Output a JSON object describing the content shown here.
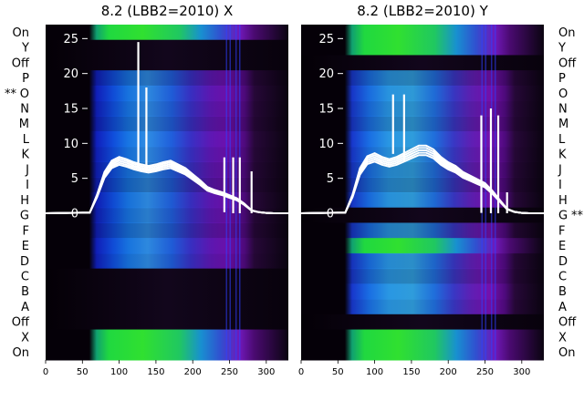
{
  "chart_data": [
    {
      "type": "heatmap",
      "title": "8.2 (LBB2=2010) X",
      "marker_row": "O",
      "xlim": [
        0,
        330
      ],
      "ylim": [
        -0.5,
        21.5
      ],
      "overlay_ylim": [
        -21,
        27
      ],
      "xticks": [
        0,
        50,
        100,
        150,
        200,
        250,
        300
      ],
      "overlay_yticks": [
        0,
        5,
        10,
        15,
        20,
        25
      ],
      "rows": [
        "On",
        "Y",
        "Off",
        "P",
        "O",
        "N",
        "M",
        "L",
        "K",
        "J",
        "I",
        "H",
        "G",
        "F",
        "E",
        "D",
        "C",
        "B",
        "A",
        "Off",
        "X",
        "On"
      ],
      "row_types": [
        "on",
        "off",
        "off",
        "data",
        "data",
        "data",
        "data",
        "data",
        "data",
        "data",
        "data",
        "data",
        "data",
        "data",
        "data",
        "data",
        "off",
        "off",
        "off",
        "off",
        "on",
        "on"
      ],
      "line_shape": {
        "x": [
          0,
          60,
          70,
          80,
          90,
          100,
          110,
          120,
          130,
          140,
          150,
          160,
          170,
          180,
          190,
          200,
          210,
          220,
          230,
          240,
          250,
          260,
          270,
          280,
          290,
          300,
          310,
          320,
          330
        ],
        "y": [
          0,
          0.1,
          2.5,
          5.5,
          7,
          7.5,
          7.2,
          6.8,
          6.5,
          6.3,
          6.5,
          6.8,
          7,
          6.5,
          6,
          5.2,
          4.4,
          3.5,
          3.1,
          2.8,
          2.4,
          2.0,
          1.3,
          0.4,
          0.15,
          0.05,
          0,
          0,
          0
        ]
      },
      "spikes": [
        {
          "x": 126,
          "y": 24.5
        },
        {
          "x": 137,
          "y": 18
        },
        {
          "x": 243,
          "y": 8
        },
        {
          "x": 255,
          "y": 8
        },
        {
          "x": 264,
          "y": 8
        },
        {
          "x": 280,
          "y": 6
        }
      ]
    },
    {
      "type": "heatmap",
      "title": "8.2 (LBB2=2010) Y",
      "marker_row": "G",
      "xlim": [
        0,
        330
      ],
      "ylim": [
        -0.5,
        21.5
      ],
      "overlay_ylim": [
        -21,
        27
      ],
      "xticks": [
        0,
        50,
        100,
        150,
        200,
        250,
        300
      ],
      "overlay_yticks": [
        0,
        5,
        10,
        15,
        20,
        25
      ],
      "rows": [
        "On",
        "Y",
        "Off",
        "P",
        "O",
        "N",
        "M",
        "L",
        "K",
        "J",
        "I",
        "H",
        "G",
        "F",
        "E",
        "D",
        "C",
        "B",
        "A",
        "Off",
        "X",
        "On"
      ],
      "row_types": [
        "on",
        "on",
        "off",
        "data",
        "data",
        "data",
        "data",
        "data",
        "data",
        "data",
        "data",
        "data",
        "off",
        "data",
        "on",
        "data",
        "data",
        "data",
        "data",
        "off",
        "on",
        "on"
      ],
      "line_shape": {
        "x": [
          0,
          60,
          70,
          80,
          90,
          100,
          110,
          120,
          130,
          140,
          150,
          160,
          170,
          180,
          190,
          200,
          210,
          220,
          230,
          240,
          250,
          260,
          270,
          280,
          290,
          300,
          310,
          320,
          330
        ],
        "y": [
          0,
          0.1,
          2.5,
          6,
          7.6,
          8,
          7.5,
          7.2,
          7.5,
          8,
          8.5,
          9,
          9,
          8.5,
          7.5,
          6.8,
          6.3,
          5.5,
          5,
          4.5,
          4,
          3,
          1.8,
          0.6,
          0.2,
          0.05,
          0,
          0,
          0
        ]
      },
      "spikes": [
        {
          "x": 125,
          "y": 17
        },
        {
          "x": 140,
          "y": 17
        },
        {
          "x": 245,
          "y": 14
        },
        {
          "x": 258,
          "y": 15
        },
        {
          "x": 268,
          "y": 14
        },
        {
          "x": 280,
          "y": 3
        }
      ]
    }
  ]
}
